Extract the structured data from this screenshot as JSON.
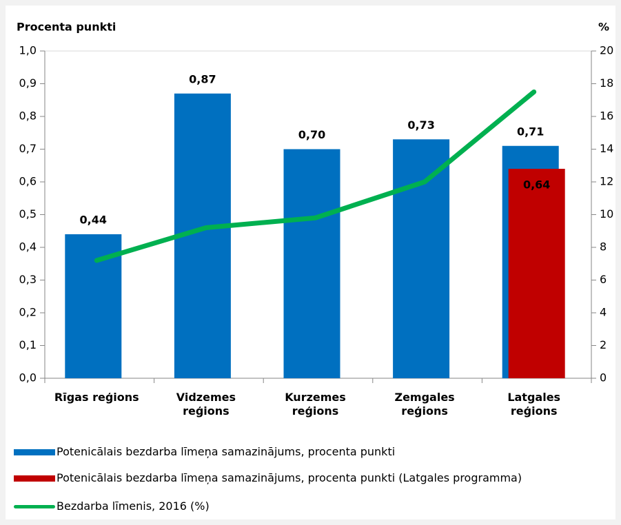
{
  "chart_data": {
    "type": "bar",
    "y_label": "Procenta punkti",
    "y2_label": "%",
    "categories": [
      "Rīgas reģions",
      "Vidzemes reģions",
      "Kurzemes reģions",
      "Zemgales reģions",
      "Latgales reģions"
    ],
    "series": [
      {
        "name": "Potenicālais bezdarba līmeņa samazinājums, procenta punkti",
        "type": "bar",
        "color": "#0070c0",
        "values": [
          0.44,
          0.87,
          0.7,
          0.73,
          0.71
        ],
        "value_labels": [
          "0,44",
          "0,87",
          "0,70",
          "0,73",
          "0,71"
        ]
      },
      {
        "name": "Potenicālais bezdarba līmeņa samazinājums, procenta punkti (Latgales programma)",
        "type": "bar",
        "color": "#c00000",
        "values": [
          null,
          null,
          null,
          null,
          0.64
        ],
        "value_labels": [
          null,
          null,
          null,
          null,
          "0,64"
        ]
      },
      {
        "name": "Bezdarba līmenis, 2016 (%)",
        "type": "line",
        "axis": "y2",
        "color": "#00b050",
        "values": [
          7.2,
          9.2,
          9.8,
          12.0,
          17.5
        ]
      }
    ],
    "ylim": [
      0,
      1.0
    ],
    "yticks": [
      {
        "value": 0,
        "label": "0,0"
      },
      {
        "value": 0.1,
        "label": "0,1"
      },
      {
        "value": 0.2,
        "label": "0,2"
      },
      {
        "value": 0.3,
        "label": "0,3"
      },
      {
        "value": 0.4,
        "label": "0,4"
      },
      {
        "value": 0.5,
        "label": "0,5"
      },
      {
        "value": 0.6,
        "label": "0,6"
      },
      {
        "value": 0.7,
        "label": "0,7"
      },
      {
        "value": 0.8,
        "label": "0,8"
      },
      {
        "value": 0.9,
        "label": "0,9"
      },
      {
        "value": 1.0,
        "label": "1,0"
      }
    ],
    "y2lim": [
      0,
      20
    ],
    "y2ticks": [
      0,
      2,
      4,
      6,
      8,
      10,
      12,
      14,
      16,
      18,
      20
    ]
  }
}
